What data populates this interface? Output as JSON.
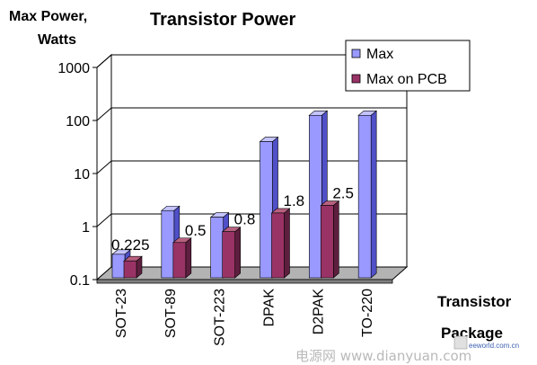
{
  "chart_data": {
    "type": "bar",
    "title": "Transistor Power",
    "ylabel_lines": [
      "Max Power,",
      "Watts"
    ],
    "xlabel_lines": [
      "Transistor",
      "Package"
    ],
    "yscale": "log",
    "ylim": [
      0.1,
      1000
    ],
    "yticks": [
      "1000",
      "100",
      "10",
      "1",
      "0.1"
    ],
    "categories": [
      "SOT-23",
      "SOT-89",
      "SOT-223",
      "DPAK",
      "D2PAK",
      "TO-220"
    ],
    "series": [
      {
        "name": "Max",
        "values": [
          0.3,
          2,
          1.5,
          40,
          125,
          125
        ]
      },
      {
        "name": "Max on PCB",
        "values": [
          0.225,
          0.5,
          0.8,
          1.8,
          2.5,
          null
        ]
      }
    ],
    "data_labels": [
      "0.225",
      "0.5",
      "0.8",
      "1.8",
      "2.5"
    ],
    "grid": true,
    "style": "3d",
    "legend_position": "top-right",
    "colors": {
      "max_front": "#9999ff",
      "max_side": "#5050c8",
      "max_top": "#c4c4ff",
      "pcb_front": "#993366",
      "pcb_side": "#5e1f3f",
      "pcb_top": "#b8607f",
      "floor": "#b3b3b3",
      "floor_side": "#808080"
    }
  },
  "watermark": "电源网 www.dianyuan.com",
  "logo_text": "eeworld.com.cn"
}
